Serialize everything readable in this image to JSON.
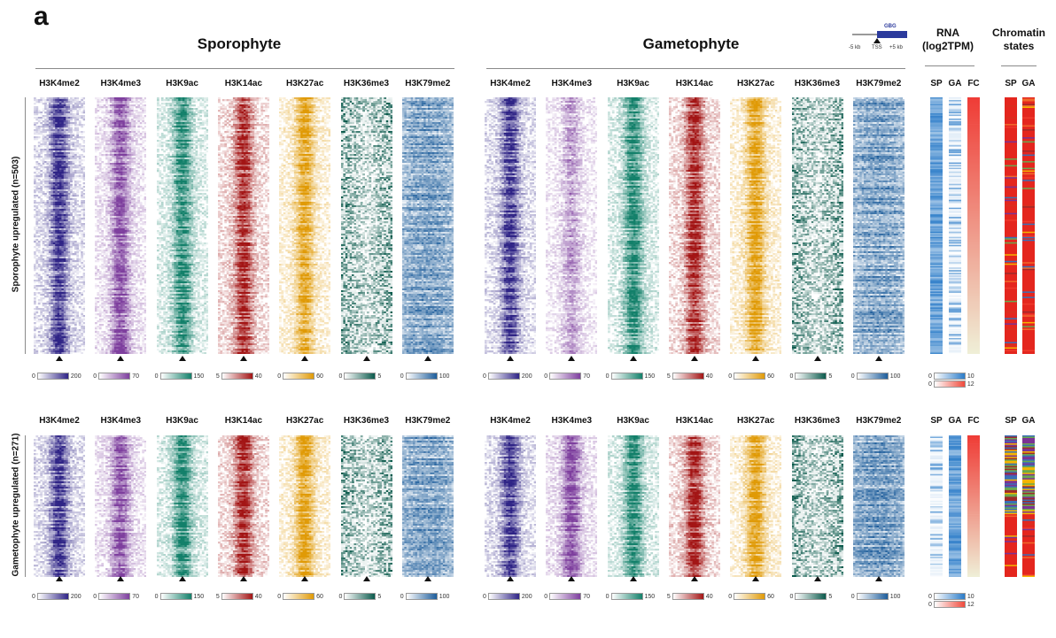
{
  "panel_letter": "a",
  "groups": [
    {
      "title": "Sporophyte"
    },
    {
      "title": "Gametophyte"
    }
  ],
  "gene_model": {
    "name": "GBG",
    "left": "-5 kb",
    "center": "TSS",
    "right": "+5 kb"
  },
  "rna": {
    "title_line1": "RNA",
    "title_line2": "(log2TPM)",
    "columns": [
      "SP",
      "GA",
      "FC"
    ]
  },
  "chromatin": {
    "title_line1": "Chromatin",
    "title_line2": "states",
    "columns": [
      "SP",
      "GA"
    ]
  },
  "rows": [
    {
      "title": "Sporophyte upregulated (n=503)"
    },
    {
      "title": "Gametophyte upregulated (n=271)"
    }
  ],
  "tracks": [
    {
      "label": "H3K4me2",
      "color": "#2f2486",
      "min": "0",
      "max": "200"
    },
    {
      "label": "H3K4me3",
      "color": "#7e3f9e",
      "min": "0",
      "max": "70"
    },
    {
      "label": "H3K9ac",
      "color": "#13806a",
      "min": "0",
      "max": "150"
    },
    {
      "label": "H3K14ac",
      "color": "#a31515",
      "min": "5",
      "max": "40"
    },
    {
      "label": "H3K27ac",
      "color": "#e09a06",
      "min": "0",
      "max": "60"
    },
    {
      "label": "H3K36me3",
      "color": "#0b5a4c",
      "min": "0",
      "max": "5"
    },
    {
      "label": "H3K79me2",
      "color": "#1d5d9b",
      "min": "0",
      "max": "100"
    }
  ],
  "rna_legend": [
    {
      "min": "0",
      "max": "10",
      "color": "#2a7bc8"
    },
    {
      "min": "0",
      "max": "12",
      "color": "#ef4a3c"
    }
  ]
}
